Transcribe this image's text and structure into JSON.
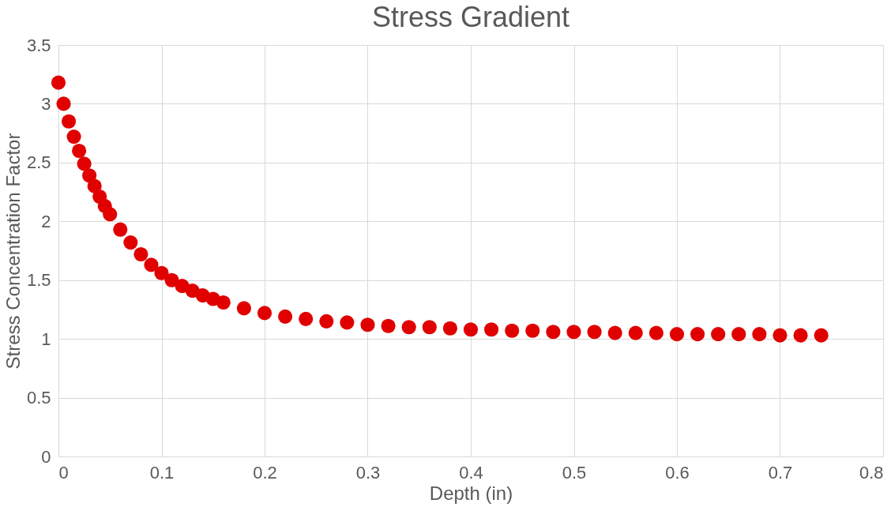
{
  "chart_data": {
    "type": "scatter",
    "title": "Stress Gradient",
    "xlabel": "Depth (in)",
    "ylabel": "Stress Concentration Factor",
    "x": [
      0,
      0.005,
      0.01,
      0.015,
      0.02,
      0.025,
      0.03,
      0.035,
      0.04,
      0.045,
      0.05,
      0.06,
      0.07,
      0.08,
      0.09,
      0.1,
      0.11,
      0.12,
      0.13,
      0.14,
      0.15,
      0.16,
      0.18,
      0.2,
      0.22,
      0.24,
      0.26,
      0.28,
      0.3,
      0.32,
      0.34,
      0.36,
      0.38,
      0.4,
      0.42,
      0.44,
      0.46,
      0.48,
      0.5,
      0.52,
      0.54,
      0.56,
      0.58,
      0.6,
      0.62,
      0.64,
      0.66,
      0.68,
      0.7,
      0.72,
      0.74
    ],
    "series": [
      {
        "color": "#e00000",
        "values": [
          3.18,
          3.0,
          2.85,
          2.72,
          2.6,
          2.49,
          2.39,
          2.3,
          2.21,
          2.13,
          2.06,
          1.93,
          1.82,
          1.72,
          1.63,
          1.56,
          1.5,
          1.45,
          1.41,
          1.37,
          1.34,
          1.31,
          1.26,
          1.22,
          1.19,
          1.17,
          1.15,
          1.14,
          1.12,
          1.11,
          1.1,
          1.1,
          1.09,
          1.08,
          1.08,
          1.07,
          1.07,
          1.06,
          1.06,
          1.06,
          1.05,
          1.05,
          1.05,
          1.04,
          1.04,
          1.04,
          1.04,
          1.04,
          1.03,
          1.03,
          1.03
        ]
      }
    ],
    "xlim": [
      0,
      0.8
    ],
    "xticks": [
      0,
      0.1,
      0.2,
      0.3,
      0.4,
      0.5,
      0.6,
      0.7,
      0.8
    ],
    "ylim": [
      0,
      3.5
    ],
    "yticks": [
      0,
      0.5,
      1,
      1.5,
      2,
      2.5,
      3,
      3.5
    ],
    "grid": true,
    "marker": "circle",
    "legend": false
  }
}
